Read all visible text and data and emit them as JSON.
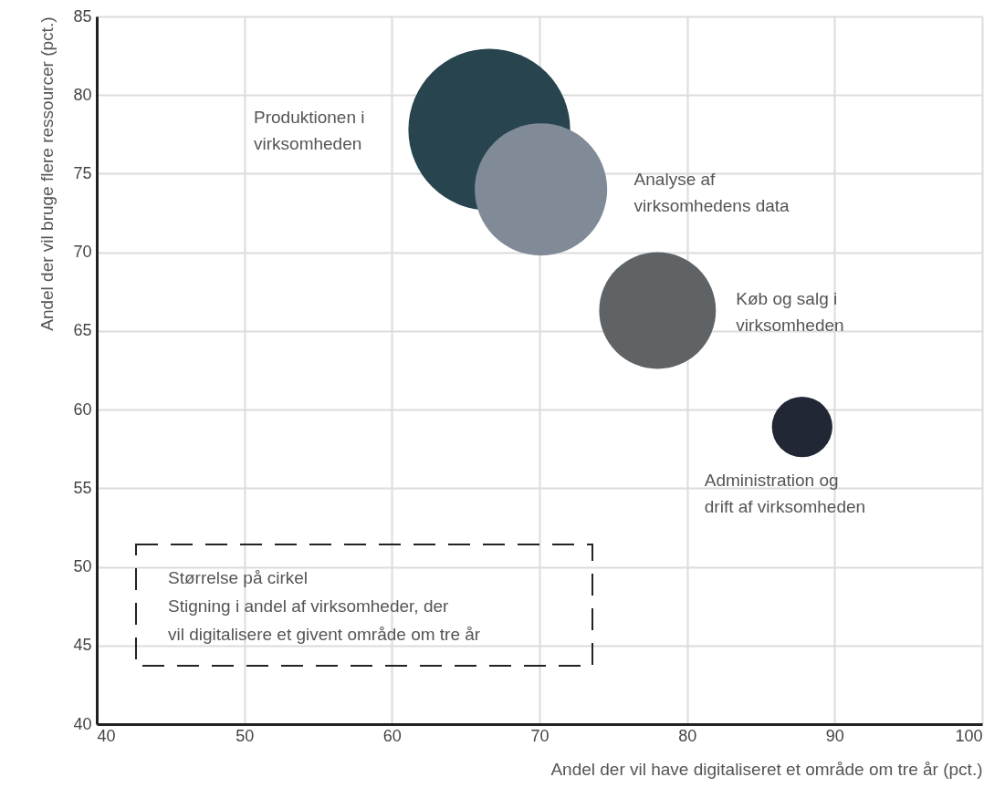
{
  "chart_data": {
    "type": "bubble",
    "xlabel": "Andel der vil have digitaliseret et område om tre år (pct.)",
    "ylabel": "Andel der vil bruge flere ressourcer (pct.)",
    "xlim": [
      40,
      100
    ],
    "xticks": [
      40,
      50,
      60,
      70,
      80,
      90,
      100
    ],
    "ylim": [
      40,
      85
    ],
    "yticks": [
      40,
      45,
      50,
      55,
      60,
      65,
      70,
      75,
      80,
      85
    ],
    "grid": true,
    "legend": false,
    "series": [
      {
        "name": "Produktionen i\nvirksomheden",
        "color": "#27444f",
        "x": [
          66.6
        ],
        "values": [
          77.8
        ],
        "sizes": [
          1
        ]
      },
      {
        "name": "Analyse af\nvirksomhedens data",
        "color": "#808b97",
        "x": [
          70.1
        ],
        "values": [
          74.0
        ],
        "sizes": [
          0.67
        ]
      },
      {
        "name": "Køb og salg i\nvirksomheden",
        "color": "#5f6366",
        "x": [
          78.0
        ],
        "values": [
          66.3
        ],
        "sizes": [
          0.52
        ]
      },
      {
        "name": "Administration og\ndrift af virksomheden",
        "color": "#222736",
        "x": [
          87.8
        ],
        "values": [
          58.9
        ],
        "sizes": [
          0.14
        ]
      }
    ],
    "annotations": [
      "Størrelse på cirkel\nStigning i andel af virksomheder, der\nvil digitalisere et givent område om tre år"
    ]
  }
}
